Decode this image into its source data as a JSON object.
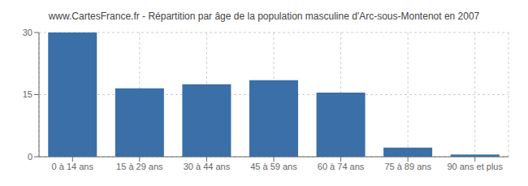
{
  "chart_data": {
    "type": "bar",
    "title": "www.CartesFrance.fr - Répartition par âge de la population masculine d'Arc-sous-Montenot en 2007",
    "categories": [
      "0 à 14 ans",
      "15 à 29 ans",
      "30 à 44 ans",
      "45 à 59 ans",
      "60 à 74 ans",
      "75 à 89 ans",
      "90 ans et plus"
    ],
    "values": [
      30,
      16.5,
      17.5,
      18.5,
      15.5,
      2.2,
      0.55
    ],
    "color": "#3a6fa8",
    "ylim": [
      0,
      30
    ],
    "yticks": [
      0,
      15,
      30
    ],
    "grid": true
  }
}
